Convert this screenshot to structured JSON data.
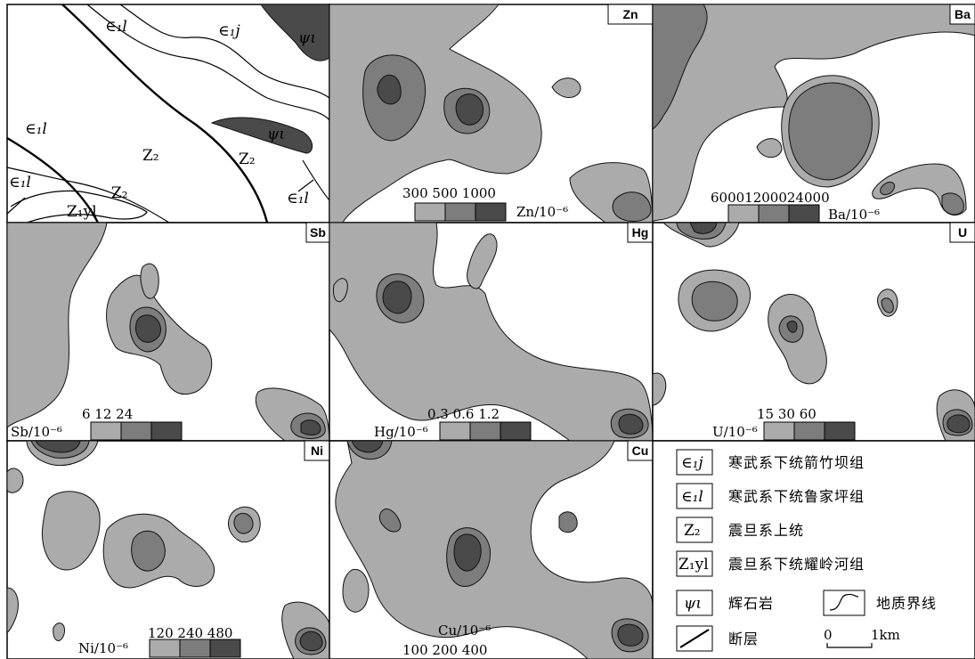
{
  "geology": {
    "units": {
      "e1l_a": "∈₁l",
      "e1j": "∈₁j",
      "psi_a": "ψι",
      "e1l_b": "∈₁l",
      "psi_b": "ψι",
      "z2_a": "Z₂",
      "z2_b": "Z₂",
      "e1l_c": "∈₁l",
      "e1l_d": "∈₁l",
      "z2_c": "Z₂",
      "z1yl": "Z₁yl"
    }
  },
  "panels": [
    {
      "tag": "Zn",
      "unit": "Zn/10⁻⁶",
      "levels": "300 500 1000"
    },
    {
      "tag": "Ba",
      "unit": "Ba/10⁻⁶",
      "levels": "60001200024000"
    },
    {
      "tag": "Sb",
      "unit": "Sb/10⁻⁶",
      "levels": "6 12 24"
    },
    {
      "tag": "Hg",
      "unit": "Hg/10⁻⁶",
      "levels": "0.3 0.6 1.2"
    },
    {
      "tag": "U",
      "unit": "U/10⁻⁶",
      "levels": "15 30 60"
    },
    {
      "tag": "Ni",
      "unit": "Ni/10⁻⁶",
      "levels": "120 240 480"
    },
    {
      "tag": "Cu",
      "unit": "Cu/10⁻⁶",
      "levels": "100 200 400"
    }
  ],
  "legend": {
    "items": [
      {
        "symbol": "∈₁j",
        "text": "寒武系下统箭竹坝组"
      },
      {
        "symbol": "∈₁l",
        "text": "寒武系下统鲁家坪组"
      },
      {
        "symbol": "Z₂",
        "text": "震旦系上统"
      },
      {
        "symbol": "Z₁yl",
        "text": "震旦系下统耀岭河组"
      },
      {
        "symbol": "ψι",
        "text": "辉石岩"
      }
    ],
    "boundary_text": "地质界线",
    "fault_text": "断层",
    "scale_zero": "0",
    "scale_km": "1km"
  },
  "colors": {
    "level1": "#ababab",
    "level2": "#7d7d7d",
    "level3": "#4a4a4a"
  }
}
